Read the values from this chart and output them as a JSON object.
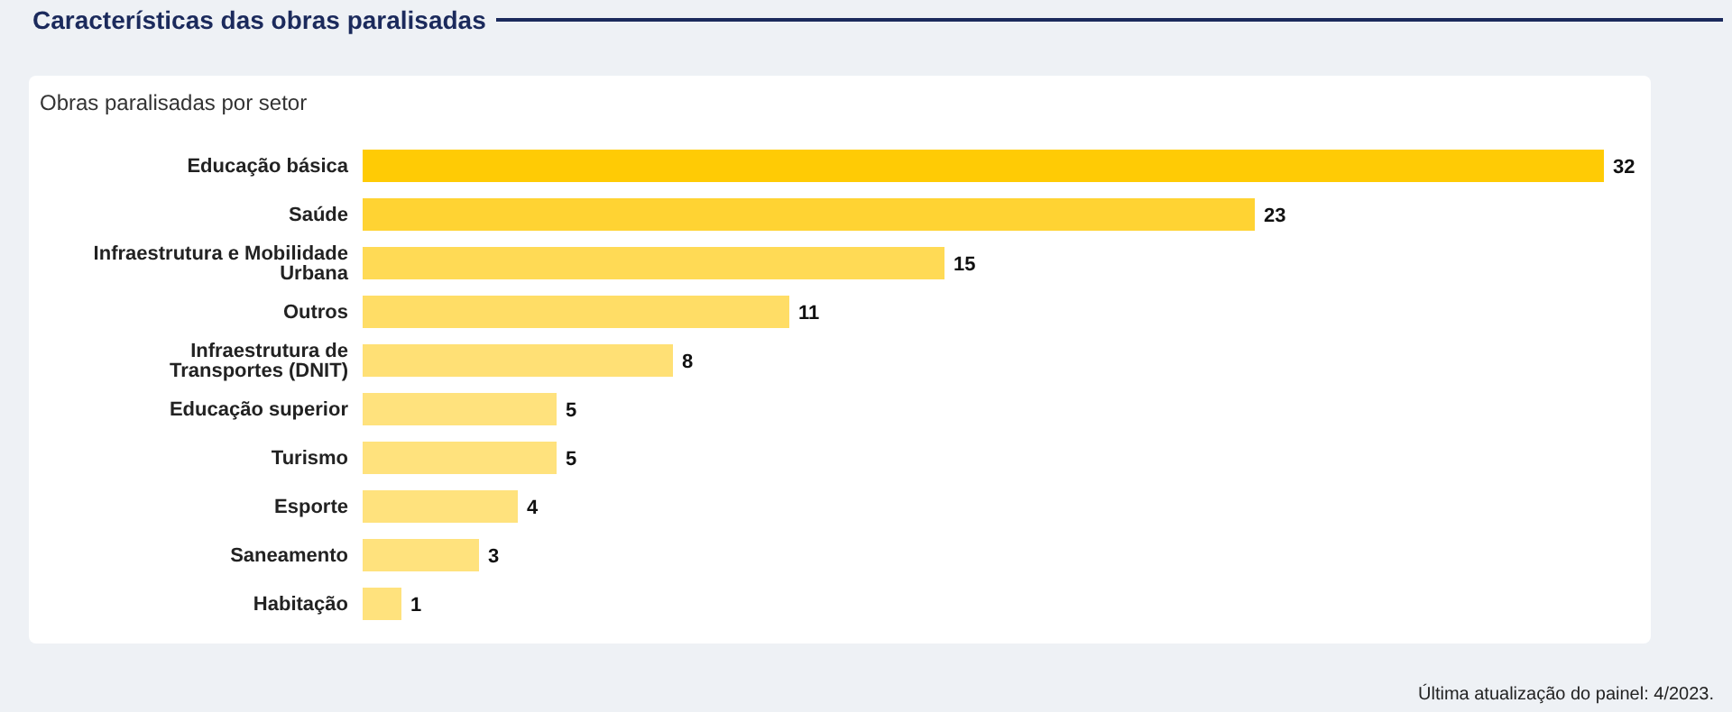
{
  "chart_data": {
    "type": "bar",
    "orientation": "horizontal",
    "title": "Características das obras paralisadas",
    "subtitle": "Obras paralisadas por setor",
    "categories": [
      "Educação básica",
      "Saúde",
      "Infraestrutura e Mobilidade Urbana",
      "Outros",
      "Infraestrutura de Transportes (DNIT)",
      "Educação superior",
      "Turismo",
      "Esporte",
      "Saneamento",
      "Habitação"
    ],
    "values": [
      32,
      23,
      15,
      11,
      8,
      5,
      5,
      4,
      3,
      1
    ],
    "colors": [
      "#ffcb05",
      "#ffd333",
      "#ffda55",
      "#ffdd66",
      "#ffe075",
      "#ffe27d",
      "#ffe27d",
      "#ffe27d",
      "#ffe27d",
      "#ffe27d"
    ],
    "data_labels": true,
    "grid": false,
    "legend": false,
    "annotations": [
      "Última atualização do painel: 4/2023."
    ]
  }
}
